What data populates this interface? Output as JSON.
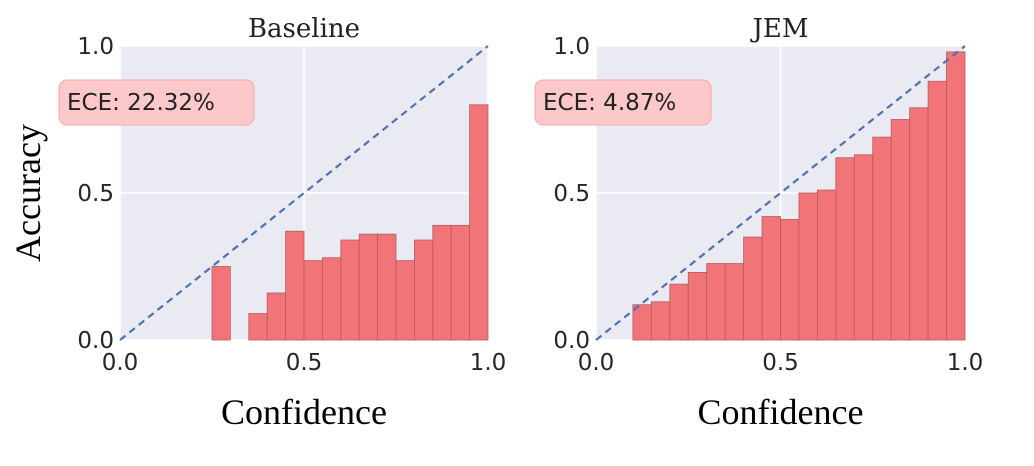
{
  "figure": {
    "ylabel": "Accuracy"
  },
  "chart_data": [
    {
      "type": "bar",
      "title": "Baseline",
      "xlabel": "Confidence",
      "ylabel": "Accuracy",
      "xlim": [
        0.0,
        1.0
      ],
      "ylim": [
        0.0,
        1.0
      ],
      "xticks": [
        "0.0",
        "0.5",
        "1.0"
      ],
      "yticks": [
        "0.0",
        "0.5",
        "1.0"
      ],
      "grid": true,
      "reference_line": "diagonal",
      "annotation": "ECE: 22.32%",
      "bin_width": 0.05,
      "bins": [
        0.0,
        0.05,
        0.1,
        0.15,
        0.2,
        0.25,
        0.3,
        0.35,
        0.4,
        0.45,
        0.5,
        0.55,
        0.6,
        0.65,
        0.7,
        0.75,
        0.8,
        0.85,
        0.9,
        0.95
      ],
      "values": [
        0,
        0,
        0,
        0,
        0,
        0.25,
        0,
        0.09,
        0.16,
        0.37,
        0.27,
        0.28,
        0.34,
        0.36,
        0.36,
        0.27,
        0.34,
        0.39,
        0.39,
        0.8
      ],
      "bar_color": "#f07478",
      "line_color": "#4c72b0"
    },
    {
      "type": "bar",
      "title": "JEM",
      "xlabel": "Confidence",
      "ylabel": "",
      "xlim": [
        0.0,
        1.0
      ],
      "ylim": [
        0.0,
        1.0
      ],
      "xticks": [
        "0.0",
        "0.5",
        "1.0"
      ],
      "yticks": [
        "0.0",
        "0.5",
        "1.0"
      ],
      "grid": true,
      "reference_line": "diagonal",
      "annotation": "ECE: 4.87%",
      "bin_width": 0.05,
      "bins": [
        0.0,
        0.05,
        0.1,
        0.15,
        0.2,
        0.25,
        0.3,
        0.35,
        0.4,
        0.45,
        0.5,
        0.55,
        0.6,
        0.65,
        0.7,
        0.75,
        0.8,
        0.85,
        0.9,
        0.95
      ],
      "values": [
        0,
        0,
        0.12,
        0.13,
        0.19,
        0.23,
        0.26,
        0.26,
        0.35,
        0.42,
        0.41,
        0.5,
        0.51,
        0.62,
        0.63,
        0.69,
        0.75,
        0.79,
        0.88,
        0.98
      ],
      "bar_color": "#f07478",
      "line_color": "#4c72b0"
    }
  ]
}
